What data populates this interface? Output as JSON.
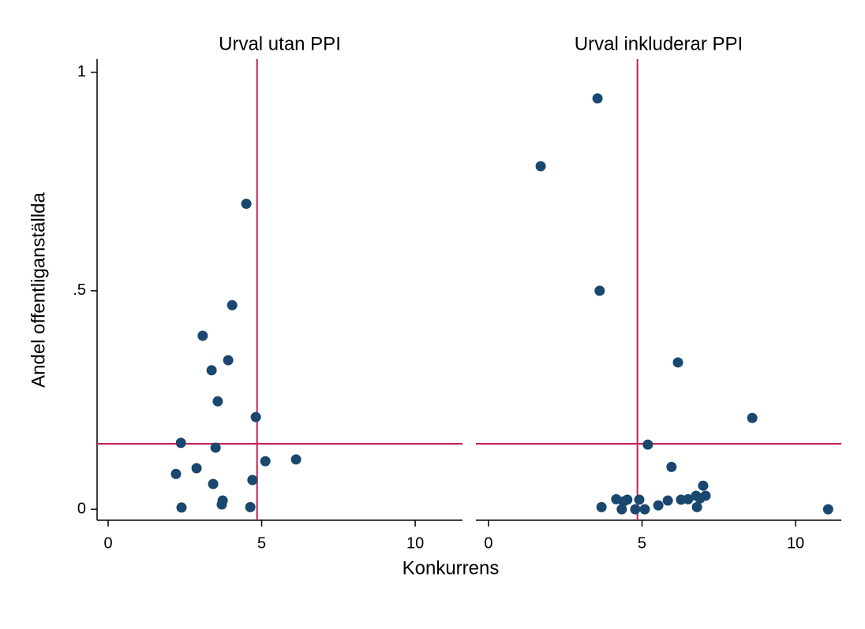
{
  "xlabel": "Konkurrens",
  "ylabel": "Andel offentliganställda",
  "chart_data": [
    {
      "type": "scatter",
      "title": "Urval utan PPI",
      "color": "#1a476f",
      "line_color": "#c41e50",
      "x": [
        2.37,
        2.39,
        2.21,
        2.88,
        3.08,
        3.37,
        3.42,
        3.5,
        3.57,
        3.73,
        3.7,
        3.91,
        4.04,
        4.5,
        4.63,
        4.7,
        4.81,
        5.12,
        6.12
      ],
      "y": [
        0.152,
        0.004,
        0.081,
        0.094,
        0.397,
        0.318,
        0.058,
        0.141,
        0.247,
        0.02,
        0.011,
        0.341,
        0.467,
        0.699,
        0.005,
        0.067,
        0.211,
        0.11,
        0.114
      ],
      "xlim": [
        -0.36,
        11.54
      ],
      "ylim": [
        -0.025,
        1.03
      ],
      "xticks": [
        0,
        5,
        10
      ],
      "yticks": [
        0,
        {
          "value": 0.5,
          "label": ".5"
        },
        1
      ],
      "vlines": [
        4.85
      ],
      "hlines": [
        0.15
      ]
    },
    {
      "type": "scatter",
      "title": "Urval inkluderar PPI",
      "color": "#1a476f",
      "line_color": "#c41e50",
      "x": [
        1.7,
        3.55,
        3.68,
        3.62,
        4.16,
        4.34,
        4.4,
        4.52,
        4.78,
        4.91,
        5.09,
        5.19,
        5.53,
        5.84,
        5.96,
        6.17,
        6.27,
        6.5,
        6.76,
        6.79,
        6.89,
        6.99,
        7.07,
        8.59,
        11.06
      ],
      "y": [
        0.785,
        0.94,
        0.005,
        0.5,
        0.023,
        0.0,
        0.018,
        0.022,
        0.0,
        0.022,
        0.0,
        0.148,
        0.009,
        0.02,
        0.097,
        0.336,
        0.022,
        0.023,
        0.031,
        0.005,
        0.025,
        0.054,
        0.031,
        0.209,
        0.0
      ],
      "xlim": [
        -0.41,
        11.49
      ],
      "ylim": [
        -0.025,
        1.03
      ],
      "xticks": [
        0,
        5,
        10
      ],
      "vlines": [
        4.85
      ],
      "hlines": [
        0.15
      ]
    }
  ]
}
